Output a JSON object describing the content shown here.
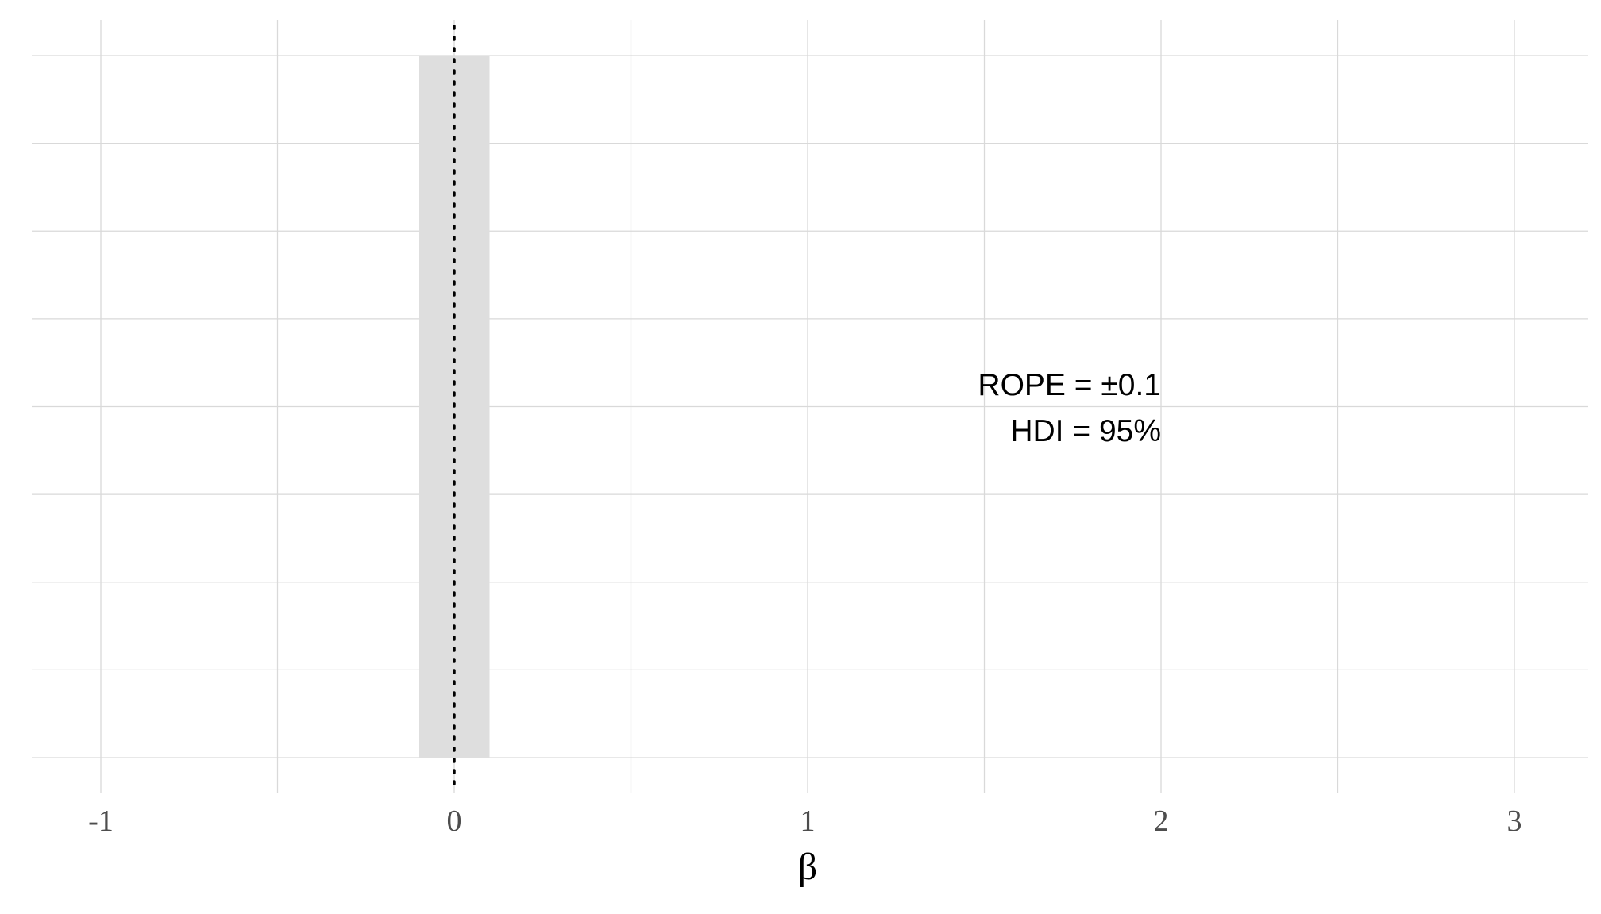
{
  "chart_data": {
    "type": "area",
    "title": "",
    "xlabel": "β",
    "ylabel": "",
    "xlim": [
      -1.2,
      3.2
    ],
    "xticks": [
      -1,
      0,
      1,
      2,
      3
    ],
    "tick_labels": [
      "-1",
      "0",
      "1",
      "2",
      "3"
    ],
    "x_minor_gridlines": [
      -0.5,
      0.5,
      1.5,
      2.5
    ],
    "y_gridline_count": 9,
    "grid": true,
    "rope": {
      "low": -0.1,
      "high": 0.1,
      "color": "#dedede"
    },
    "reference_line": {
      "x": 0,
      "style": "dotted",
      "color": "#000000"
    },
    "annotations": [
      "ROPE = ±0.1",
      "HDI = 95%"
    ],
    "annotation_position_x": 2.0,
    "series": []
  }
}
